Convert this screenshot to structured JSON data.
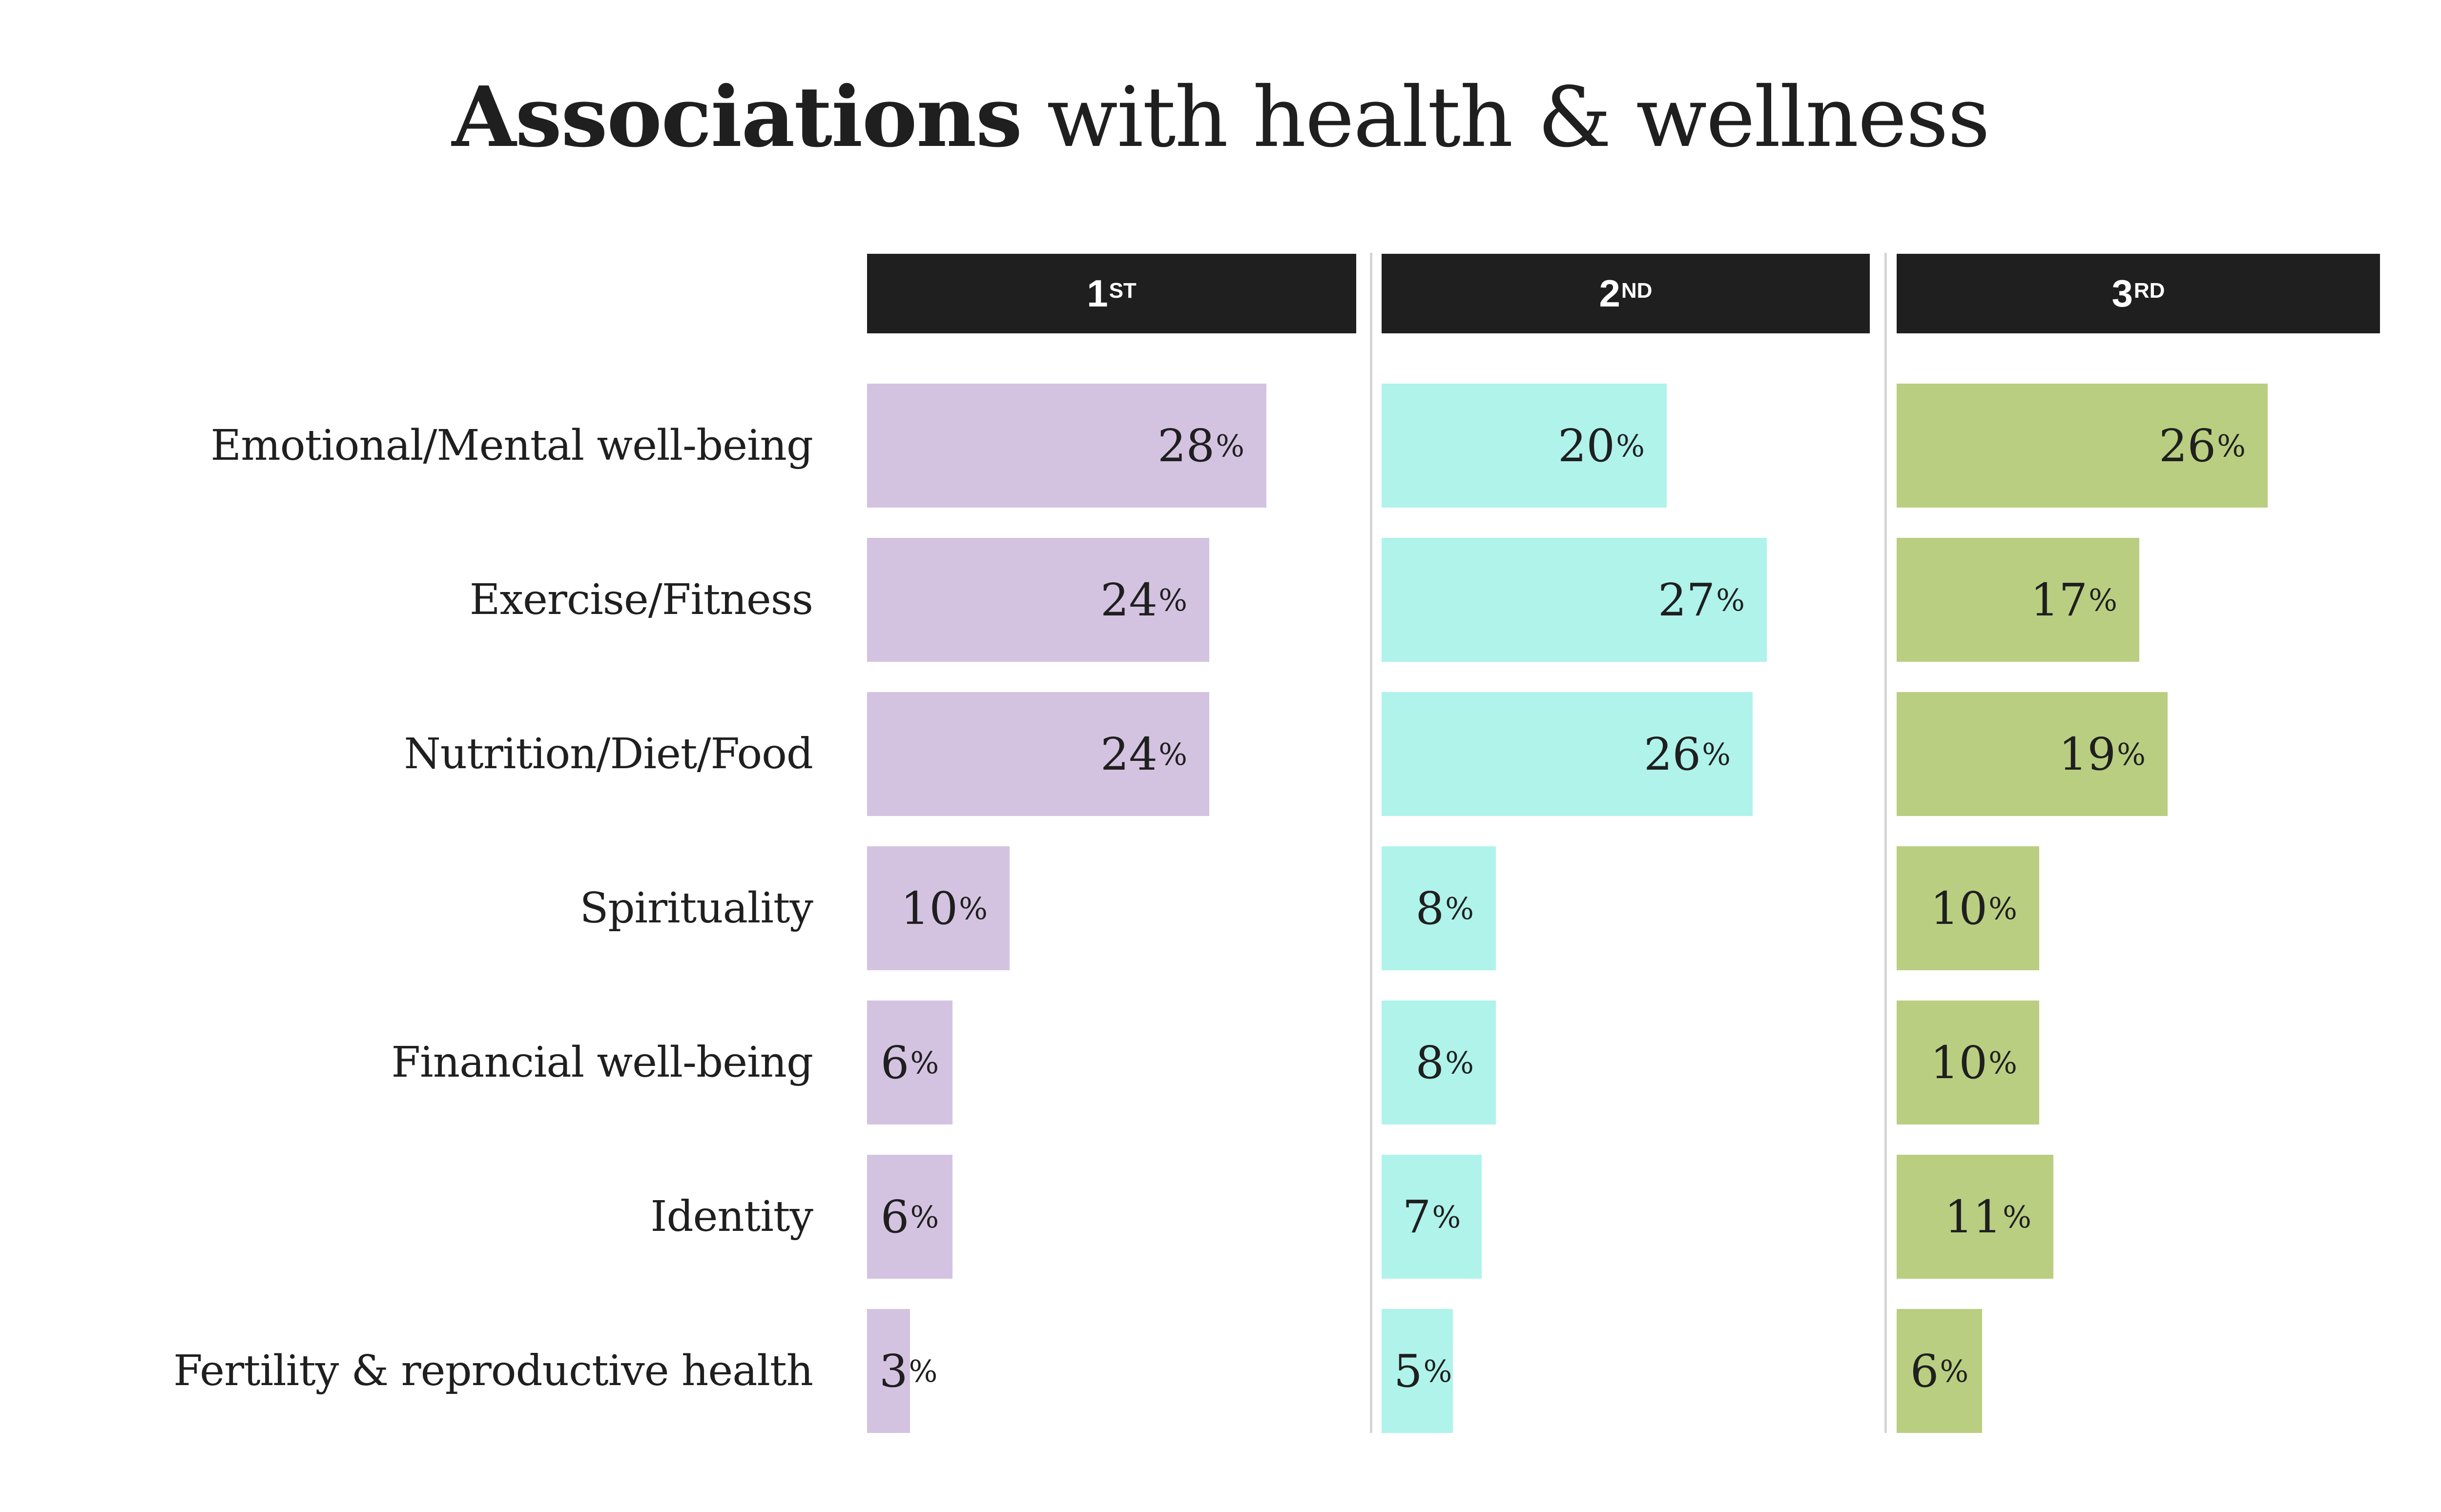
{
  "chart_data": {
    "type": "bar",
    "orientation": "horizontal",
    "title": {
      "bold": "Associations",
      "regular": "with health & wellness"
    },
    "categories": [
      "Emotional/Mental well-being",
      "Exercise/Fitness",
      "Nutrition/Diet/Food",
      "Spirituality",
      "Financial well-being",
      "Identity",
      "Fertility & reproductive health"
    ],
    "series": [
      {
        "name": "1ST",
        "rank": "1",
        "suffix": "ST",
        "color": "#D3C3E0",
        "values": [
          28,
          24,
          24,
          10,
          6,
          6,
          3
        ]
      },
      {
        "name": "2ND",
        "rank": "2",
        "suffix": "ND",
        "color": "#AFF3EB",
        "values": [
          20,
          27,
          26,
          8,
          8,
          7,
          5
        ]
      },
      {
        "name": "3RD",
        "rank": "3",
        "suffix": "RD",
        "color": "#B9CE80",
        "values": [
          26,
          17,
          19,
          10,
          10,
          11,
          6
        ]
      }
    ],
    "value_suffix": "%",
    "xlabel": "",
    "ylabel": "",
    "xlim": [
      0,
      33
    ],
    "grid": false,
    "legend": "column headers at top"
  },
  "colors": {
    "header_bg": "#1F1F1F",
    "header_text": "#FFFFFF",
    "text": "#1F1F1F",
    "divider": "#D4D4D4"
  }
}
